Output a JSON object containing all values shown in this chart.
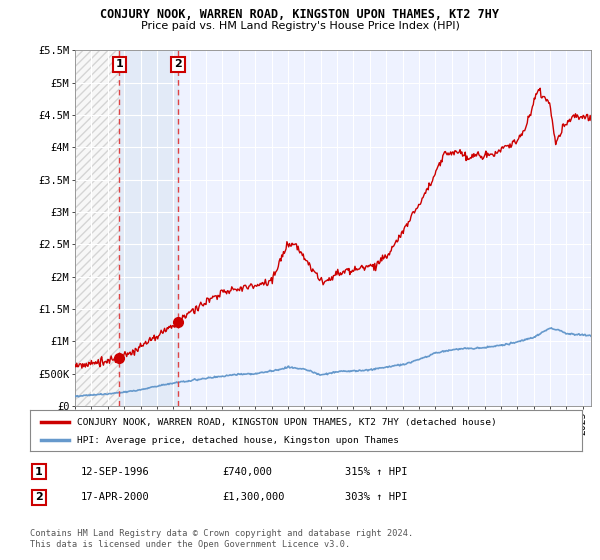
{
  "title": "CONJURY NOOK, WARREN ROAD, KINGSTON UPON THAMES, KT2 7HY",
  "subtitle": "Price paid vs. HM Land Registry's House Price Index (HPI)",
  "legend_line1": "CONJURY NOOK, WARREN ROAD, KINGSTON UPON THAMES, KT2 7HY (detached house)",
  "legend_line2": "HPI: Average price, detached house, Kingston upon Thames",
  "footer": "Contains HM Land Registry data © Crown copyright and database right 2024.\nThis data is licensed under the Open Government Licence v3.0.",
  "sale1_label": "1",
  "sale1_date": "12-SEP-1996",
  "sale1_price": "£740,000",
  "sale1_hpi": "315% ↑ HPI",
  "sale1_x": 1996.71,
  "sale1_y": 740000,
  "sale2_label": "2",
  "sale2_date": "17-APR-2000",
  "sale2_price": "£1,300,000",
  "sale2_hpi": "303% ↑ HPI",
  "sale2_x": 2000.29,
  "sale2_y": 1300000,
  "hpi_color": "#6699cc",
  "property_color": "#cc0000",
  "marker_color": "#cc0000",
  "dashed_color": "#dd4444",
  "background_plot": "#eef2ff",
  "background_hatch": "#e8e8e8",
  "background_between": "#dde8f5",
  "background_fig": "#ffffff",
  "ylim_min": 0,
  "ylim_max": 5500000,
  "xlim_min": 1994,
  "xlim_max": 2025.5,
  "yticks": [
    0,
    500000,
    1000000,
    1500000,
    2000000,
    2500000,
    3000000,
    3500000,
    4000000,
    4500000,
    5000000,
    5500000
  ],
  "ytick_labels": [
    "£0",
    "£500K",
    "£1M",
    "£1.5M",
    "£2M",
    "£2.5M",
    "£3M",
    "£3.5M",
    "£4M",
    "£4.5M",
    "£5M",
    "£5.5M"
  ],
  "xticks": [
    1994,
    1995,
    1996,
    1997,
    1998,
    1999,
    2000,
    2001,
    2002,
    2003,
    2004,
    2005,
    2006,
    2007,
    2008,
    2009,
    2010,
    2011,
    2012,
    2013,
    2014,
    2015,
    2016,
    2017,
    2018,
    2019,
    2020,
    2021,
    2022,
    2023,
    2024,
    2025
  ]
}
